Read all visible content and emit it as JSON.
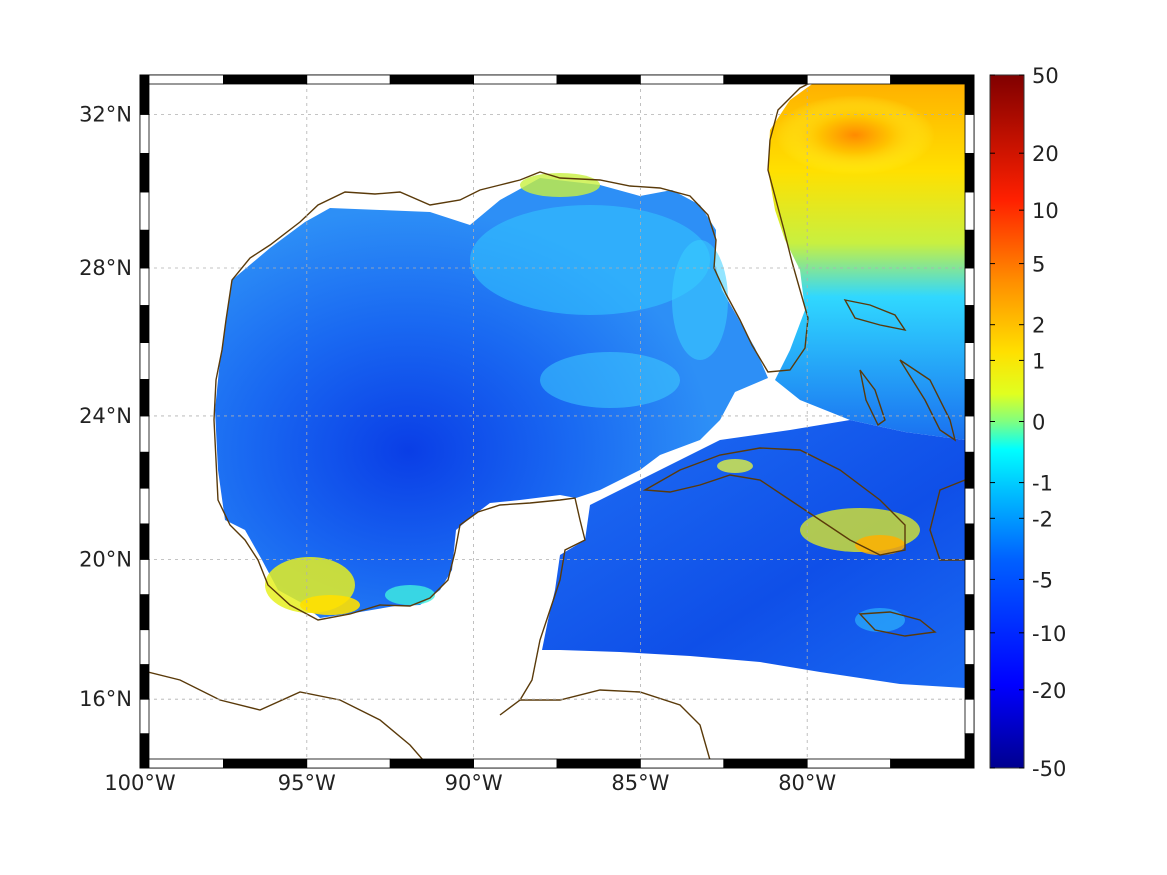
{
  "map": {
    "lon_range": [
      -100,
      -75
    ],
    "lat_range": [
      14,
      33
    ],
    "lon_ticks": [
      {
        "lon": -100,
        "label": "100°W"
      },
      {
        "lon": -95,
        "label": "95°W"
      },
      {
        "lon": -90,
        "label": "90°W"
      },
      {
        "lon": -85,
        "label": "85°W"
      },
      {
        "lon": -80,
        "label": "80°W"
      }
    ],
    "lat_ticks": [
      {
        "lat": 32,
        "label": "32°N"
      },
      {
        "lat": 28,
        "label": "28°N"
      },
      {
        "lat": 24,
        "label": "24°N"
      },
      {
        "lat": 20,
        "label": "20°N"
      },
      {
        "lat": 16,
        "label": "16°N"
      }
    ],
    "grid": true,
    "projection": "mercator",
    "coastline_color": "#5a3a0a"
  },
  "colorbar": {
    "scale": "symmetric-log",
    "range": [
      -50,
      50
    ],
    "ticks": [
      {
        "value": 50,
        "label": "50"
      },
      {
        "value": 20,
        "label": "20"
      },
      {
        "value": 10,
        "label": "10"
      },
      {
        "value": 5,
        "label": "5"
      },
      {
        "value": 2,
        "label": "2"
      },
      {
        "value": 1,
        "label": "1"
      },
      {
        "value": 0,
        "label": "0"
      },
      {
        "value": -1,
        "label": "-1"
      },
      {
        "value": -2,
        "label": "-2"
      },
      {
        "value": -5,
        "label": "-5"
      },
      {
        "value": -10,
        "label": "-10"
      },
      {
        "value": -20,
        "label": "-20"
      },
      {
        "value": -50,
        "label": "-50"
      }
    ],
    "colormap": [
      "#00008f",
      "#0000ff",
      "#0080ff",
      "#00ffff",
      "#80ff80",
      "#ffff00",
      "#ff8000",
      "#ff0000",
      "#800000"
    ]
  }
}
